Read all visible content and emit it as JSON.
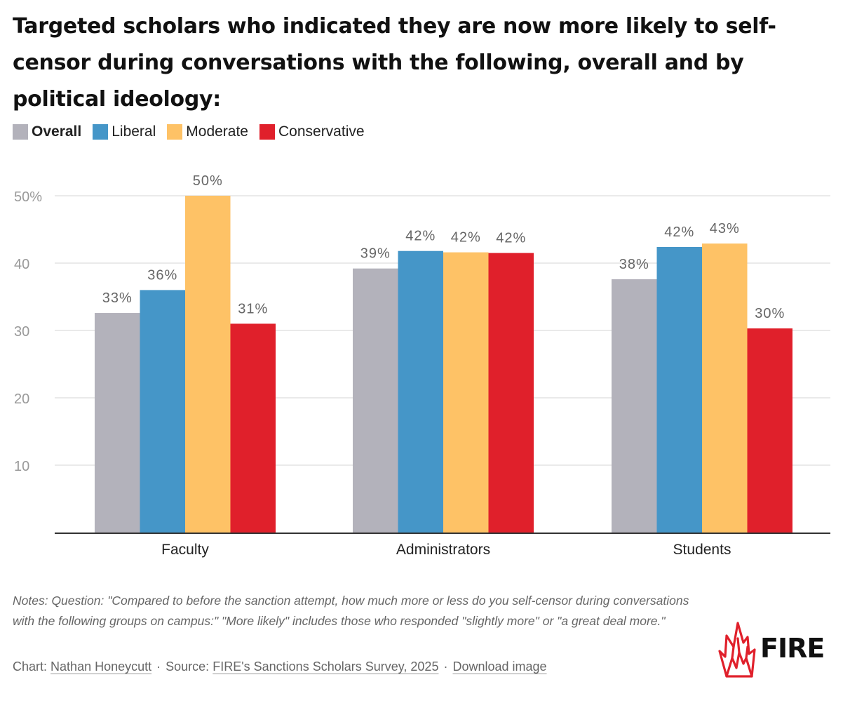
{
  "title": "Targeted scholars who indicated they are now more likely to self-censor during conversations with the following, overall and by political ideology:",
  "legend": [
    {
      "label": "Overall",
      "color": "#b3b2bb"
    },
    {
      "label": "Liberal",
      "color": "#4596c8"
    },
    {
      "label": "Moderate",
      "color": "#fec266"
    },
    {
      "label": "Conservative",
      "color": "#e0202b"
    }
  ],
  "chart_data": {
    "type": "bar",
    "categories": [
      "Faculty",
      "Administrators",
      "Students"
    ],
    "series": [
      {
        "name": "Overall",
        "color": "#b3b2bb",
        "values": [
          32.6,
          39.2,
          37.6
        ],
        "labels": [
          "33%",
          "39%",
          "38%"
        ]
      },
      {
        "name": "Liberal",
        "color": "#4596c8",
        "values": [
          36.0,
          41.8,
          42.4
        ],
        "labels": [
          "36%",
          "42%",
          "42%"
        ]
      },
      {
        "name": "Moderate",
        "color": "#fec266",
        "values": [
          50.0,
          41.6,
          42.9
        ],
        "labels": [
          "50%",
          "42%",
          "43%"
        ]
      },
      {
        "name": "Conservative",
        "color": "#e0202b",
        "values": [
          31.0,
          41.5,
          30.3
        ],
        "labels": [
          "31%",
          "42%",
          "30%"
        ]
      }
    ],
    "yticks": [
      {
        "value": 10,
        "label": "10"
      },
      {
        "value": 20,
        "label": "20"
      },
      {
        "value": 30,
        "label": "30"
      },
      {
        "value": 40,
        "label": "40"
      },
      {
        "value": 50,
        "label": "50%"
      }
    ],
    "ylim": [
      0,
      50
    ],
    "grid": true,
    "legend_position": "top-left"
  },
  "notes": "Notes: Question: \"Compared to before the sanction attempt, how much more or less do you self-censor during conversations with the following groups on campus:\" \"More likely\" includes those who responded \"slightly more\" or \"a great deal more.\"",
  "credits": {
    "chart_prefix": "Chart:",
    "author": "Nathan Honeycutt",
    "source_prefix": "Source:",
    "source": "FIRE's Sanctions Scholars Survey, 2025",
    "separator": "·",
    "download": "Download image"
  },
  "logo": {
    "text": "FIRE",
    "icon": "flame-icon",
    "color": "#e0202b"
  }
}
